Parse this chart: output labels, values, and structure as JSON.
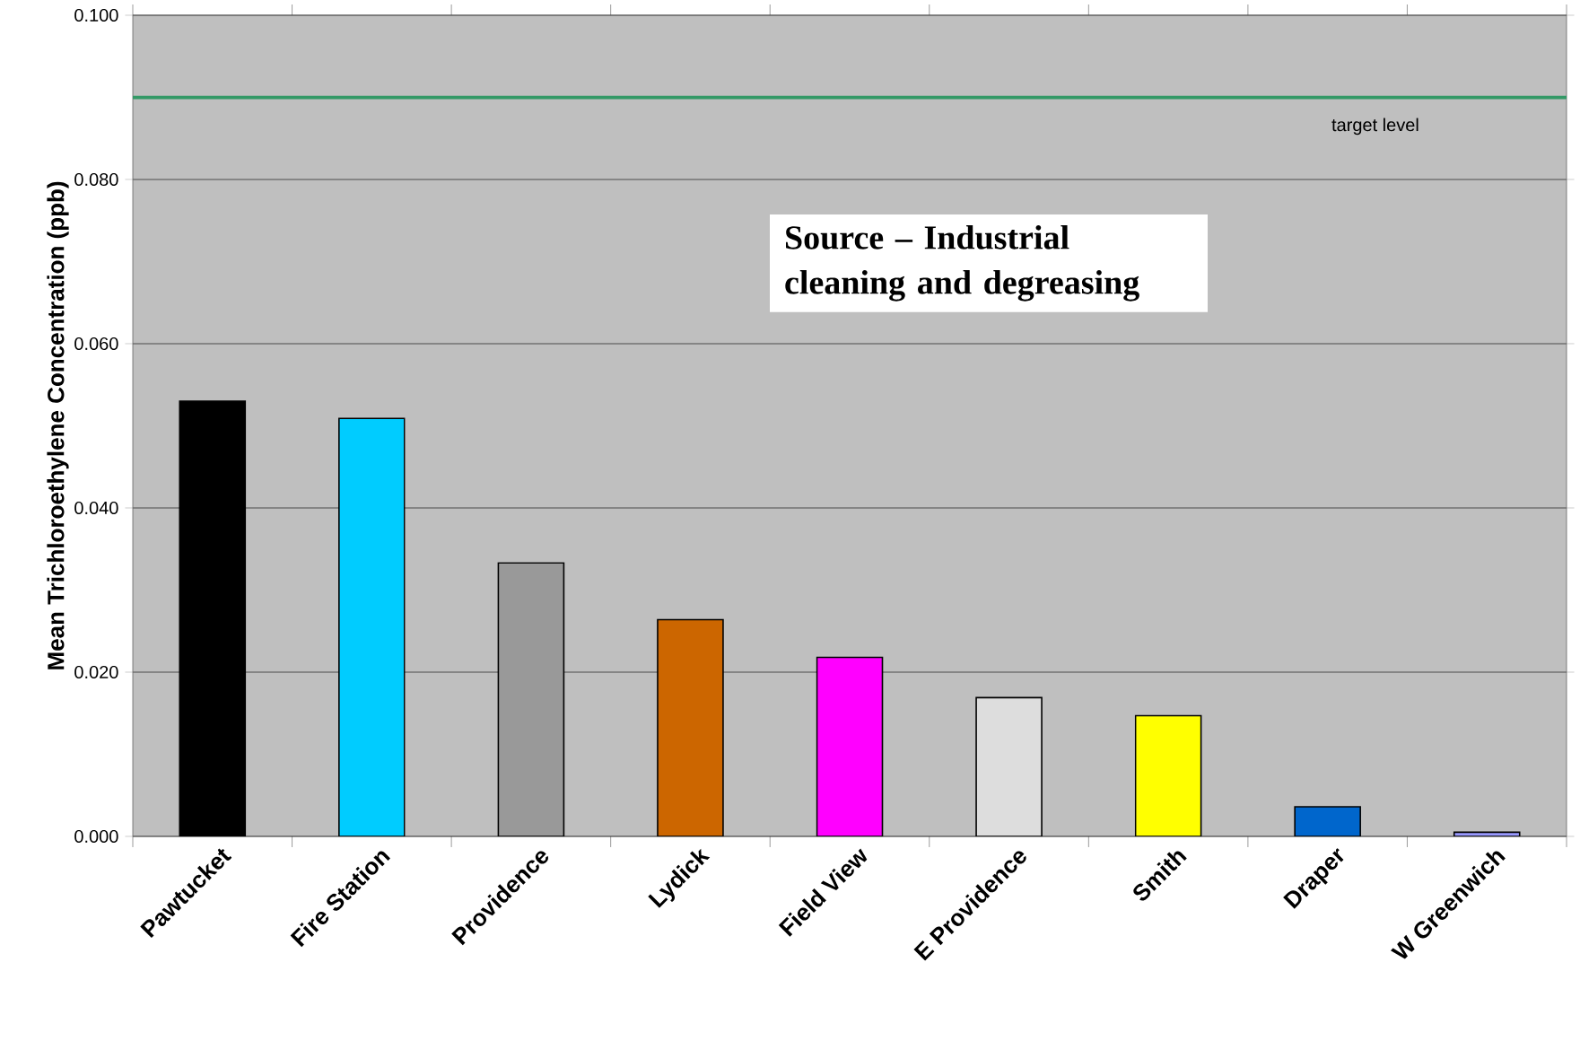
{
  "chart_data": {
    "type": "bar",
    "ylabel": "Mean Trichloroethylene Concentration (ppb)",
    "categories": [
      "Pawtucket",
      "Fire Station",
      "Providence",
      "Lydick",
      "Field View",
      "E Providence",
      "Smith",
      "Draper",
      "W Greenwich"
    ],
    "values": [
      0.053,
      0.0509,
      0.0333,
      0.0264,
      0.0218,
      0.0169,
      0.0147,
      0.0036,
      0.0005
    ],
    "colors": [
      "#000000",
      "#00ccff",
      "#999999",
      "#cc6600",
      "#ff00ff",
      "#dddddd",
      "#ffff00",
      "#0066cc",
      "#9999ff"
    ],
    "ylim": [
      0,
      0.1
    ],
    "yticks": [
      {
        "value": 0,
        "label": "0.000"
      },
      {
        "value": 0.02,
        "label": "0.020"
      },
      {
        "value": 0.04,
        "label": "0.040"
      },
      {
        "value": 0.06,
        "label": "0.060"
      },
      {
        "value": 0.08,
        "label": "0.080"
      },
      {
        "value": 0.1,
        "label": "0.100"
      }
    ],
    "grid": "y",
    "ref_lines": [
      {
        "axis": "y",
        "value": 0.09,
        "label": "target level",
        "color": "#339966"
      }
    ],
    "annotations": [
      "Source – Industrial cleaning and degreasing"
    ]
  }
}
